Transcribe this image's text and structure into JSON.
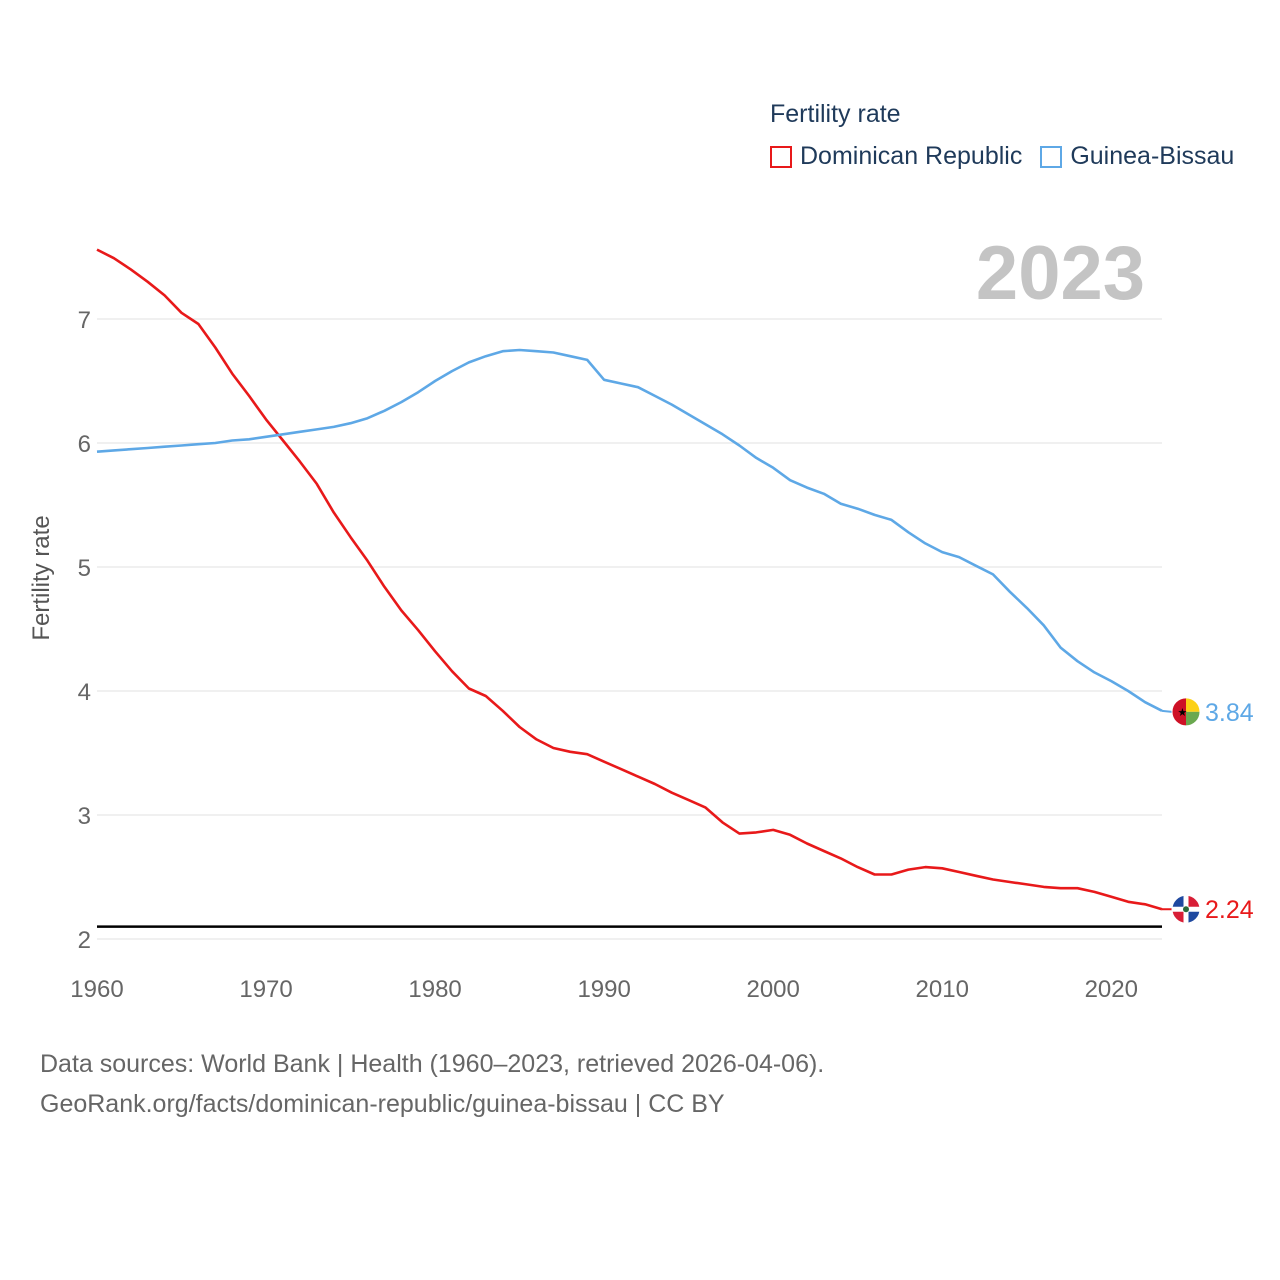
{
  "colors": {
    "dominican": "#e8191a",
    "guinea": "#5ea8e6",
    "grid": "#e6e6e6",
    "tick": "#666666",
    "year": "#c4c4c4",
    "title": "#1f3a5a",
    "reference": "#000000"
  },
  "legend": {
    "title": "Fertility rate",
    "items": [
      {
        "label": "Dominican Republic",
        "color": "#e8191a"
      },
      {
        "label": "Guinea-Bissau",
        "color": "#5ea8e6"
      }
    ]
  },
  "year_label": "2023",
  "footer": {
    "line1": "Data sources: World Bank | Health (1960–2023, retrieved 2026-04-06).",
    "line2": "GeoRank.org/facts/dominican-republic/guinea-bissau | CC BY"
  },
  "chart_data": {
    "type": "line",
    "title": "Fertility rate",
    "xlabel": "",
    "ylabel": "Fertility rate",
    "xlim": [
      1960,
      2023
    ],
    "ylim": [
      2,
      7.6
    ],
    "x_ticks": [
      1960,
      1970,
      1980,
      1990,
      2000,
      2010,
      2020
    ],
    "y_ticks": [
      2,
      3,
      4,
      5,
      6,
      7
    ],
    "reference_line": 2.1,
    "x": [
      1960,
      1961,
      1962,
      1963,
      1964,
      1965,
      1966,
      1967,
      1968,
      1969,
      1970,
      1971,
      1972,
      1973,
      1974,
      1975,
      1976,
      1977,
      1978,
      1979,
      1980,
      1981,
      1982,
      1983,
      1984,
      1985,
      1986,
      1987,
      1988,
      1989,
      1990,
      1991,
      1992,
      1993,
      1994,
      1995,
      1996,
      1997,
      1998,
      1999,
      2000,
      2001,
      2002,
      2003,
      2004,
      2005,
      2006,
      2007,
      2008,
      2009,
      2010,
      2011,
      2012,
      2013,
      2014,
      2015,
      2016,
      2017,
      2018,
      2019,
      2020,
      2021,
      2022,
      2023
    ],
    "series": [
      {
        "name": "Dominican Republic",
        "end_label": "2.24",
        "values": [
          7.56,
          7.49,
          7.4,
          7.3,
          7.19,
          7.05,
          6.96,
          6.77,
          6.56,
          6.38,
          6.19,
          6.02,
          5.85,
          5.67,
          5.44,
          5.24,
          5.05,
          4.84,
          4.65,
          4.49,
          4.32,
          4.16,
          4.02,
          3.96,
          3.84,
          3.71,
          3.61,
          3.54,
          3.51,
          3.49,
          3.43,
          3.37,
          3.31,
          3.25,
          3.18,
          3.12,
          3.06,
          2.94,
          2.85,
          2.86,
          2.88,
          2.84,
          2.77,
          2.71,
          2.65,
          2.58,
          2.52,
          2.52,
          2.56,
          2.58,
          2.57,
          2.54,
          2.51,
          2.48,
          2.46,
          2.44,
          2.42,
          2.41,
          2.41,
          2.38,
          2.34,
          2.3,
          2.28,
          2.24
        ]
      },
      {
        "name": "Guinea-Bissau",
        "end_label": "3.84",
        "values": [
          5.93,
          5.94,
          5.95,
          5.96,
          5.97,
          5.98,
          5.99,
          6.0,
          6.02,
          6.03,
          6.05,
          6.07,
          6.09,
          6.11,
          6.13,
          6.16,
          6.2,
          6.26,
          6.33,
          6.41,
          6.5,
          6.58,
          6.65,
          6.7,
          6.74,
          6.75,
          6.74,
          6.73,
          6.7,
          6.67,
          6.51,
          6.48,
          6.45,
          6.38,
          6.31,
          6.23,
          6.15,
          6.07,
          5.98,
          5.88,
          5.8,
          5.7,
          5.64,
          5.59,
          5.51,
          5.47,
          5.42,
          5.38,
          5.28,
          5.19,
          5.12,
          5.08,
          5.01,
          4.94,
          4.8,
          4.67,
          4.53,
          4.35,
          4.24,
          4.15,
          4.08,
          4.0,
          3.91,
          3.84
        ]
      }
    ]
  }
}
